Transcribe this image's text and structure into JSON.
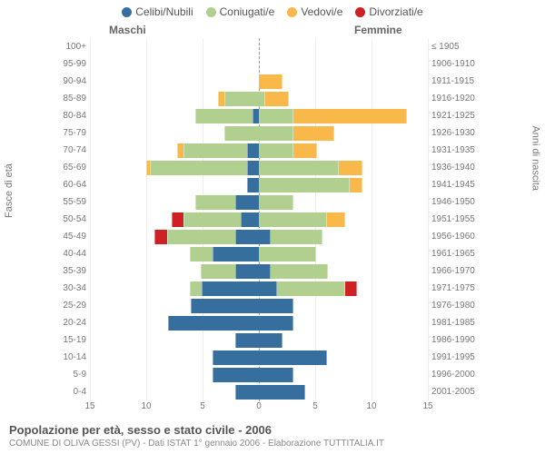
{
  "legend": [
    {
      "label": "Celibi/Nubili",
      "color": "#366f9e"
    },
    {
      "label": "Coniugati/e",
      "color": "#b1d090"
    },
    {
      "label": "Vedovi/e",
      "color": "#f9b94a"
    },
    {
      "label": "Divorziati/e",
      "color": "#cf2123"
    }
  ],
  "headers": {
    "m": "Maschi",
    "f": "Femmine"
  },
  "y_left_title": "Fasce di età",
  "y_right_title": "Anni di nascita",
  "caption1": "Popolazione per età, sesso e stato civile - 2006",
  "caption2": "COMUNE DI OLIVA GESSI (PV) - Dati ISTAT 1° gennaio 2006 - Elaborazione TUTTITALIA.IT",
  "xmax": 15,
  "xticks": [
    15,
    10,
    5,
    0,
    5,
    10,
    15
  ],
  "colors": {
    "cel": "#366f9e",
    "con": "#b1d090",
    "ved": "#f9b94a",
    "div": "#cf2123"
  },
  "plot": {
    "grid_color": "#eeeeee",
    "centerline_color": "#999999",
    "bg": "#ffffff"
  },
  "rows": [
    {
      "age": "100+",
      "birth": "≤ 1905",
      "m": {
        "cel": 0,
        "con": 0,
        "ved": 0,
        "div": 0
      },
      "f": {
        "cel": 0,
        "con": 0,
        "ved": 0,
        "div": 0
      }
    },
    {
      "age": "95-99",
      "birth": "1906-1910",
      "m": {
        "cel": 0,
        "con": 0,
        "ved": 0,
        "div": 0
      },
      "f": {
        "cel": 0,
        "con": 0,
        "ved": 0,
        "div": 0
      }
    },
    {
      "age": "90-94",
      "birth": "1911-1915",
      "m": {
        "cel": 0,
        "con": 0,
        "ved": 0,
        "div": 0
      },
      "f": {
        "cel": 0,
        "con": 0,
        "ved": 2,
        "div": 0
      }
    },
    {
      "age": "85-89",
      "birth": "1916-1920",
      "m": {
        "cel": 0,
        "con": 3,
        "ved": 0.5,
        "div": 0
      },
      "f": {
        "cel": 0,
        "con": 0.5,
        "ved": 2,
        "div": 0
      }
    },
    {
      "age": "80-84",
      "birth": "1921-1925",
      "m": {
        "cel": 0.5,
        "con": 5,
        "ved": 0,
        "div": 0
      },
      "f": {
        "cel": 0,
        "con": 3,
        "ved": 10,
        "div": 0
      }
    },
    {
      "age": "75-79",
      "birth": "1926-1930",
      "m": {
        "cel": 0,
        "con": 3,
        "ved": 0,
        "div": 0
      },
      "f": {
        "cel": 0,
        "con": 3,
        "ved": 3.5,
        "div": 0
      }
    },
    {
      "age": "70-74",
      "birth": "1931-1935",
      "m": {
        "cel": 1,
        "con": 5.5,
        "ved": 0.5,
        "div": 0
      },
      "f": {
        "cel": 0,
        "con": 3,
        "ved": 2,
        "div": 0
      }
    },
    {
      "age": "65-69",
      "birth": "1936-1940",
      "m": {
        "cel": 1,
        "con": 8.5,
        "ved": 0.3,
        "div": 0
      },
      "f": {
        "cel": 0,
        "con": 7,
        "ved": 2,
        "div": 0
      }
    },
    {
      "age": "60-64",
      "birth": "1941-1945",
      "m": {
        "cel": 1,
        "con": 0,
        "ved": 0,
        "div": 0
      },
      "f": {
        "cel": 0,
        "con": 8,
        "ved": 1,
        "div": 0
      }
    },
    {
      "age": "55-59",
      "birth": "1946-1950",
      "m": {
        "cel": 2,
        "con": 3.5,
        "ved": 0,
        "div": 0
      },
      "f": {
        "cel": 0,
        "con": 3,
        "ved": 0,
        "div": 0
      }
    },
    {
      "age": "50-54",
      "birth": "1951-1955",
      "m": {
        "cel": 1.5,
        "con": 5,
        "ved": 0,
        "div": 1
      },
      "f": {
        "cel": 0,
        "con": 6,
        "ved": 1.5,
        "div": 0
      }
    },
    {
      "age": "45-49",
      "birth": "1956-1960",
      "m": {
        "cel": 2,
        "con": 6,
        "ved": 0,
        "div": 1
      },
      "f": {
        "cel": 1,
        "con": 4.5,
        "ved": 0,
        "div": 0
      }
    },
    {
      "age": "40-44",
      "birth": "1961-1965",
      "m": {
        "cel": 4,
        "con": 2,
        "ved": 0,
        "div": 0
      },
      "f": {
        "cel": 0,
        "con": 5,
        "ved": 0,
        "div": 0
      }
    },
    {
      "age": "35-39",
      "birth": "1966-1970",
      "m": {
        "cel": 2,
        "con": 3,
        "ved": 0,
        "div": 0
      },
      "f": {
        "cel": 1,
        "con": 5,
        "ved": 0,
        "div": 0
      }
    },
    {
      "age": "30-34",
      "birth": "1971-1975",
      "m": {
        "cel": 5,
        "con": 1,
        "ved": 0,
        "div": 0
      },
      "f": {
        "cel": 1.5,
        "con": 6,
        "ved": 0,
        "div": 1
      }
    },
    {
      "age": "25-29",
      "birth": "1976-1980",
      "m": {
        "cel": 6,
        "con": 0,
        "ved": 0,
        "div": 0
      },
      "f": {
        "cel": 3,
        "con": 0,
        "ved": 0,
        "div": 0
      }
    },
    {
      "age": "20-24",
      "birth": "1981-1985",
      "m": {
        "cel": 8,
        "con": 0,
        "ved": 0,
        "div": 0
      },
      "f": {
        "cel": 3,
        "con": 0,
        "ved": 0,
        "div": 0
      }
    },
    {
      "age": "15-19",
      "birth": "1986-1990",
      "m": {
        "cel": 2,
        "con": 0,
        "ved": 0,
        "div": 0
      },
      "f": {
        "cel": 2,
        "con": 0,
        "ved": 0,
        "div": 0
      }
    },
    {
      "age": "10-14",
      "birth": "1991-1995",
      "m": {
        "cel": 4,
        "con": 0,
        "ved": 0,
        "div": 0
      },
      "f": {
        "cel": 6,
        "con": 0,
        "ved": 0,
        "div": 0
      }
    },
    {
      "age": "5-9",
      "birth": "1996-2000",
      "m": {
        "cel": 4,
        "con": 0,
        "ved": 0,
        "div": 0
      },
      "f": {
        "cel": 3,
        "con": 0,
        "ved": 0,
        "div": 0
      }
    },
    {
      "age": "0-4",
      "birth": "2001-2005",
      "m": {
        "cel": 2,
        "con": 0,
        "ved": 0,
        "div": 0
      },
      "f": {
        "cel": 4,
        "con": 0,
        "ved": 0,
        "div": 0
      }
    }
  ]
}
